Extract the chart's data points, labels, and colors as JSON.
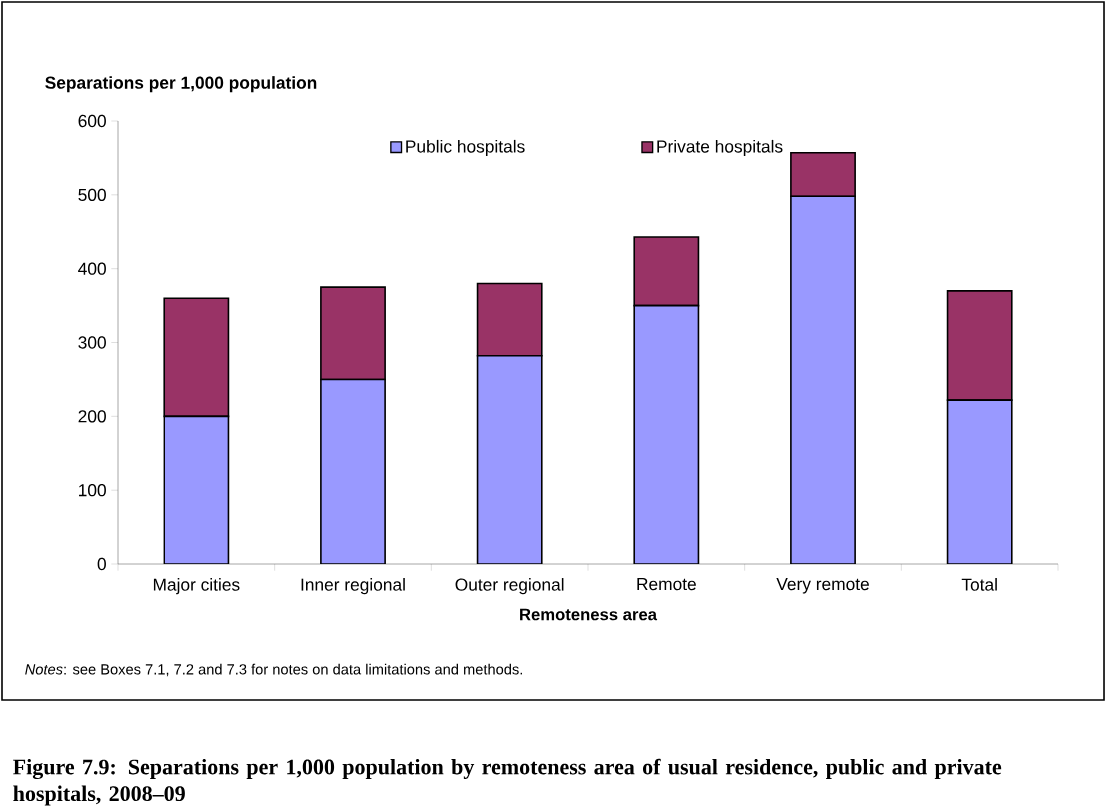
{
  "chart_data": {
    "type": "bar",
    "stacked": true,
    "title": "Figure 7.9: Separations per 1,000 population by remoteness area of usual residence, public and private hospitals, 2008–09",
    "xlabel": "Remoteness area",
    "ylabel": "Separations per 1,000 population",
    "categories": [
      "Major cities",
      "Inner regional",
      "Outer regional",
      "Remote",
      "Very remote",
      "Total"
    ],
    "series": [
      {
        "name": "Public hospitals",
        "color": "#9999ff",
        "values": [
          200,
          250,
          282,
          350,
          498,
          222
        ]
      },
      {
        "name": "Private hospitals",
        "color": "#993366",
        "values": [
          160,
          125,
          98,
          93,
          59,
          148
        ]
      }
    ],
    "ylim": [
      0,
      600
    ],
    "yticks": [
      0,
      100,
      200,
      300,
      400,
      500,
      600
    ],
    "grid": false,
    "legend": "top",
    "annotations": [
      "*Notes*: see Boxes 7.1, 7.2 and 7.3 for notes on data limitations and methods."
    ]
  }
}
